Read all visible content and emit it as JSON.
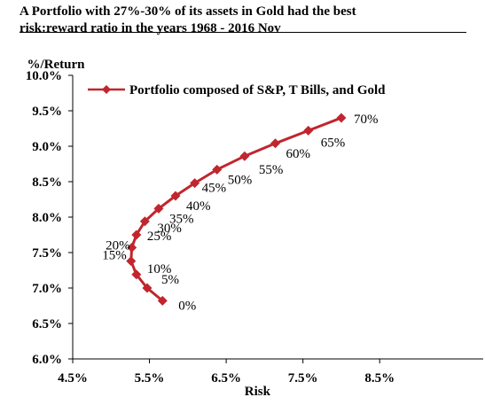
{
  "header": {
    "title_line1": "A Portfolio with 27%-30% of its assets in Gold had the best",
    "title_line2": "risk:reward ratio in the years 1968 - 2016 Nov"
  },
  "colors": {
    "series": "#c0262e",
    "axis": "#000000",
    "text": "#000000"
  },
  "chart_data": {
    "type": "line",
    "title": "A Portfolio with 27%-30% of its assets in Gold had the best risk:reward ratio in the years 1968 - 2016 Nov",
    "xlabel": "Risk",
    "ylabel": "%/Return",
    "xlim": [
      4.5,
      9.0
    ],
    "ylim": [
      6.0,
      10.0
    ],
    "x_ticks": [
      4.5,
      5.5,
      6.5,
      7.5,
      8.5
    ],
    "x_tick_labels": [
      "4.5%",
      "5.5%",
      "6.5%",
      "7.5%",
      "8.5%"
    ],
    "y_ticks": [
      6.0,
      6.5,
      7.0,
      7.5,
      8.0,
      8.5,
      9.0,
      9.5,
      10.0
    ],
    "y_tick_labels": [
      "6.0%",
      "6.5%",
      "7.0%",
      "7.5%",
      "8.0%",
      "8.5%",
      "9.0%",
      "9.5%",
      "10.0%"
    ],
    "grid": false,
    "legend": {
      "position": "top",
      "entries": [
        "Portfolio composed of S&P, T Bills, and Gold"
      ]
    },
    "series": [
      {
        "name": "Portfolio composed of S&P, T Bills, and Gold",
        "color": "#c0262e",
        "marker": "diamond",
        "points": [
          {
            "x": 5.67,
            "y": 6.82,
            "label": "0%"
          },
          {
            "x": 5.47,
            "y": 7.0,
            "label": "5%"
          },
          {
            "x": 5.33,
            "y": 7.19,
            "label": "10%"
          },
          {
            "x": 5.26,
            "y": 7.38,
            "label": "15%"
          },
          {
            "x": 5.27,
            "y": 7.57,
            "label": "20%"
          },
          {
            "x": 5.33,
            "y": 7.75,
            "label": "25%"
          },
          {
            "x": 5.44,
            "y": 7.94,
            "label": "30%"
          },
          {
            "x": 5.62,
            "y": 8.12,
            "label": "35%"
          },
          {
            "x": 5.84,
            "y": 8.3,
            "label": "40%"
          },
          {
            "x": 6.09,
            "y": 8.48,
            "label": "45%"
          },
          {
            "x": 6.38,
            "y": 8.67,
            "label": "50%"
          },
          {
            "x": 6.74,
            "y": 8.86,
            "label": "55%"
          },
          {
            "x": 7.14,
            "y": 9.04,
            "label": "60%"
          },
          {
            "x": 7.57,
            "y": 9.22,
            "label": "65%"
          },
          {
            "x": 8.0,
            "y": 9.4,
            "label": "70%"
          }
        ]
      }
    ]
  }
}
